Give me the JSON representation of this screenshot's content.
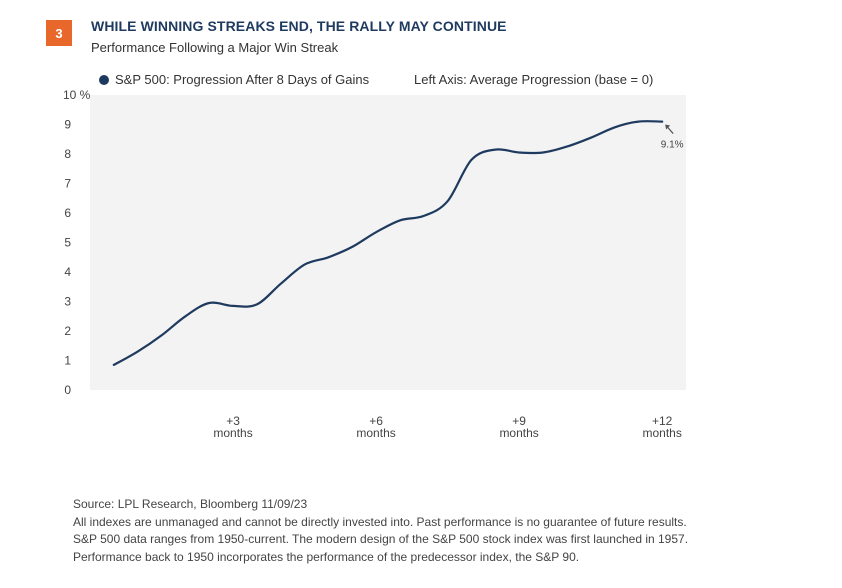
{
  "badge": "3",
  "header": {
    "title": "WHILE WINNING STREAKS END, THE RALLY MAY CONTINUE",
    "subtitle": "Performance Following a Major Win Streak"
  },
  "legend": {
    "series_label": "S&P 500: Progression After 8 Days of Gains",
    "axis_note": "Left Axis: Average Progression (base = 0)"
  },
  "colors": {
    "line": "#1f3a5f",
    "plot_bg": "#f3f3f3",
    "accent": "#e8672b"
  },
  "chart_data": {
    "type": "line",
    "title": "WHILE WINNING STREAKS END, THE RALLY MAY CONTINUE",
    "subtitle": "Performance Following a Major Win Streak",
    "ylabel": "Left Axis: Average Progression (base = 0)",
    "ylim": [
      0,
      10
    ],
    "xlim": [
      0,
      12.5
    ],
    "yticks": [
      0,
      1,
      2,
      3,
      4,
      5,
      6,
      7,
      8,
      9,
      10
    ],
    "ytick_labels": [
      "0",
      "1",
      "2",
      "3",
      "4",
      "5",
      "6",
      "7",
      "8",
      "9",
      "10 %"
    ],
    "xticks": [
      {
        "x": 3,
        "line1": "+3",
        "line2": "months"
      },
      {
        "x": 6,
        "line1": "+6",
        "line2": "months"
      },
      {
        "x": 9,
        "line1": "+9",
        "line2": "months"
      },
      {
        "x": 12,
        "line1": "+12",
        "line2": "months"
      }
    ],
    "grid": false,
    "legend_position": "top-left",
    "series": [
      {
        "name": "S&P 500: Progression After 8 Days of Gains",
        "x": [
          0.5,
          1,
          1.5,
          2,
          2.5,
          3,
          3.5,
          4,
          4.5,
          5,
          5.5,
          6,
          6.5,
          7,
          7.5,
          8,
          8.5,
          9,
          9.5,
          10,
          10.5,
          11,
          11.5,
          12
        ],
        "y": [
          0.85,
          1.3,
          1.85,
          2.5,
          2.95,
          2.85,
          2.9,
          3.6,
          4.25,
          4.5,
          4.85,
          5.35,
          5.75,
          5.9,
          6.4,
          7.8,
          8.15,
          8.05,
          8.05,
          8.25,
          8.55,
          8.9,
          9.1,
          9.1
        ],
        "end_label": "9.1%"
      }
    ]
  },
  "footnotes": [
    "Source: LPL Research, Bloomberg 11/09/23",
    "All indexes are unmanaged and cannot be directly invested into. Past performance is no guarantee of future results.",
    "S&P 500  data ranges from 1950-current. The modern design of the S&P 500 stock index was first launched in 1957.",
    "Performance back to 1950 incorporates the performance of the predecessor index, the S&P 90."
  ]
}
